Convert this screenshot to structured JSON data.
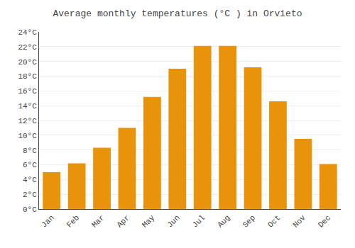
{
  "chart_data": {
    "type": "bar",
    "title": "Average monthly temperatures (°C ) in Orvieto",
    "categories": [
      "Jan",
      "Feb",
      "Mar",
      "Apr",
      "May",
      "Jun",
      "Jul",
      "Aug",
      "Sep",
      "Oct",
      "Nov",
      "Dec"
    ],
    "values": [
      5,
      6.2,
      8.3,
      11,
      15.2,
      19,
      22.1,
      22.1,
      19.2,
      14.6,
      9.5,
      6.1
    ],
    "color": "#e8930a",
    "ylim": [
      0,
      24
    ],
    "yticks": [
      {
        "value": 0,
        "label": "0°C"
      },
      {
        "value": 2,
        "label": "2°C"
      },
      {
        "value": 4,
        "label": "4°C"
      },
      {
        "value": 6,
        "label": "6°C"
      },
      {
        "value": 8,
        "label": "8°C"
      },
      {
        "value": 10,
        "label": "10°C"
      },
      {
        "value": 12,
        "label": "12°C"
      },
      {
        "value": 14,
        "label": "14°C"
      },
      {
        "value": 16,
        "label": "16°C"
      },
      {
        "value": 18,
        "label": "18°C"
      },
      {
        "value": 20,
        "label": "20°C"
      },
      {
        "value": 22,
        "label": "22°C"
      },
      {
        "value": 24,
        "label": "24°C"
      }
    ],
    "grid": true
  }
}
